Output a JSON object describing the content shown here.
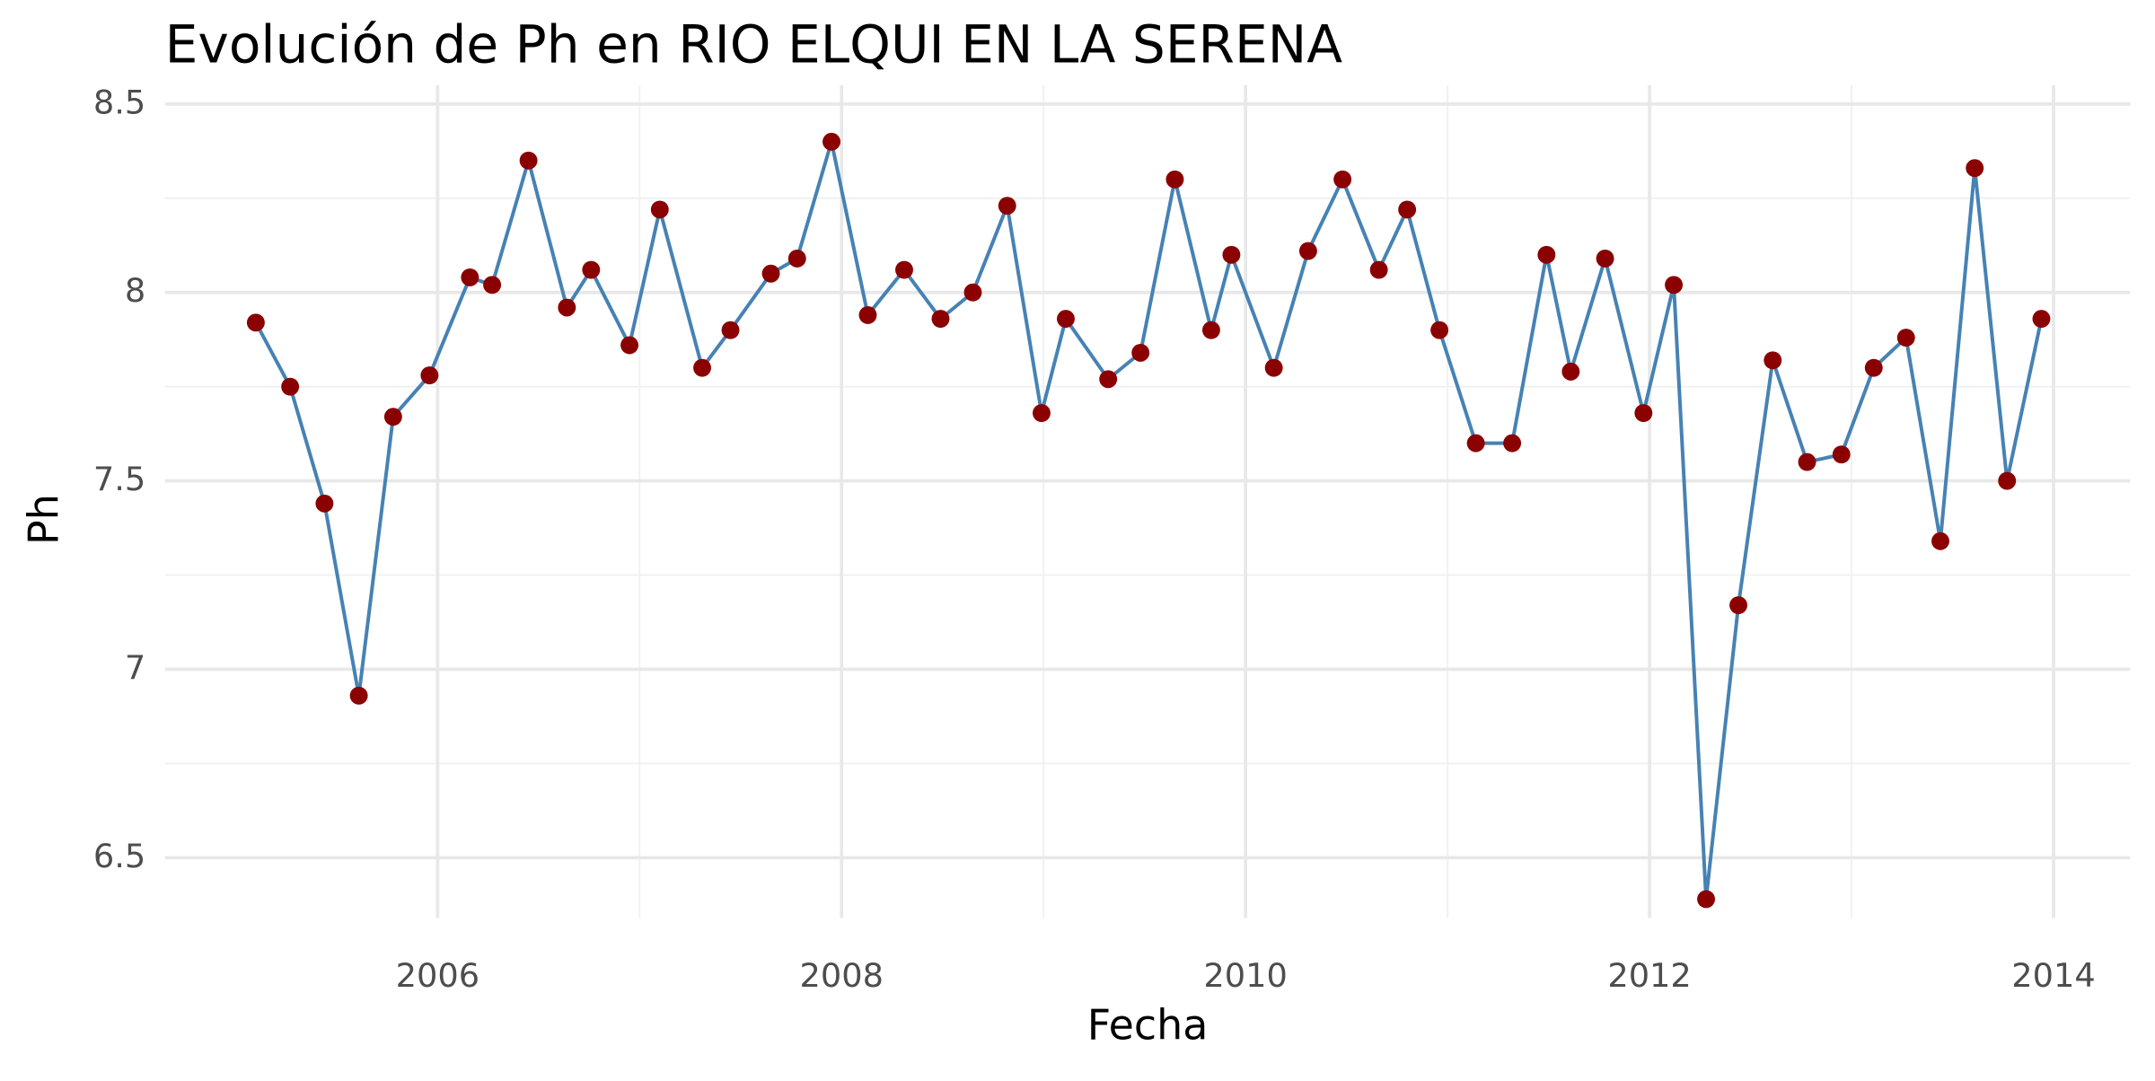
{
  "chart_data": {
    "type": "line",
    "title": "Evolución de Ph en RIO ELQUI EN LA SERENA",
    "x_label": "Fecha",
    "y_label": "Ph",
    "x": [
      2005.1,
      2005.27,
      2005.44,
      2005.61,
      2005.78,
      2005.96,
      2006.16,
      2006.27,
      2006.45,
      2006.64,
      2006.76,
      2006.95,
      2007.1,
      2007.31,
      2007.45,
      2007.65,
      2007.78,
      2007.95,
      2008.13,
      2008.31,
      2008.49,
      2008.65,
      2008.82,
      2008.99,
      2009.11,
      2009.32,
      2009.48,
      2009.65,
      2009.83,
      2009.93,
      2010.14,
      2010.31,
      2010.48,
      2010.66,
      2010.8,
      2010.96,
      2011.14,
      2011.32,
      2011.49,
      2011.61,
      2011.78,
      2011.97,
      2012.12,
      2012.28,
      2012.44,
      2012.61,
      2012.78,
      2012.95,
      2013.11,
      2013.27,
      2013.44,
      2013.61,
      2013.77,
      2013.94
    ],
    "series": [
      {
        "name": "Ph",
        "color": "#4682b4",
        "marker_color": "#8b0000",
        "values": [
          7.92,
          7.75,
          7.44,
          6.93,
          7.67,
          7.78,
          8.04,
          8.02,
          8.35,
          7.96,
          8.06,
          7.86,
          8.22,
          7.8,
          7.9,
          8.05,
          8.09,
          8.4,
          7.94,
          8.06,
          7.93,
          8.0,
          8.23,
          7.68,
          7.93,
          7.77,
          7.84,
          8.3,
          7.9,
          8.1,
          7.8,
          8.11,
          8.3,
          8.06,
          8.22,
          7.9,
          7.6,
          7.6,
          8.1,
          7.79,
          8.09,
          7.68,
          8.02,
          6.39,
          7.17,
          7.82,
          7.55,
          7.57,
          7.8,
          7.88,
          7.34,
          8.33,
          7.5,
          7.93
        ]
      }
    ],
    "xlim": [
      2004.65,
      2014.38
    ],
    "xticks": [
      2006,
      2008,
      2010,
      2012,
      2014
    ],
    "ylim": [
      6.34,
      8.55
    ],
    "yticks": [
      6.5,
      7,
      {
        "value": 7.5,
        "label": "7.5"
      },
      8,
      8.5
    ],
    "grid": true
  }
}
